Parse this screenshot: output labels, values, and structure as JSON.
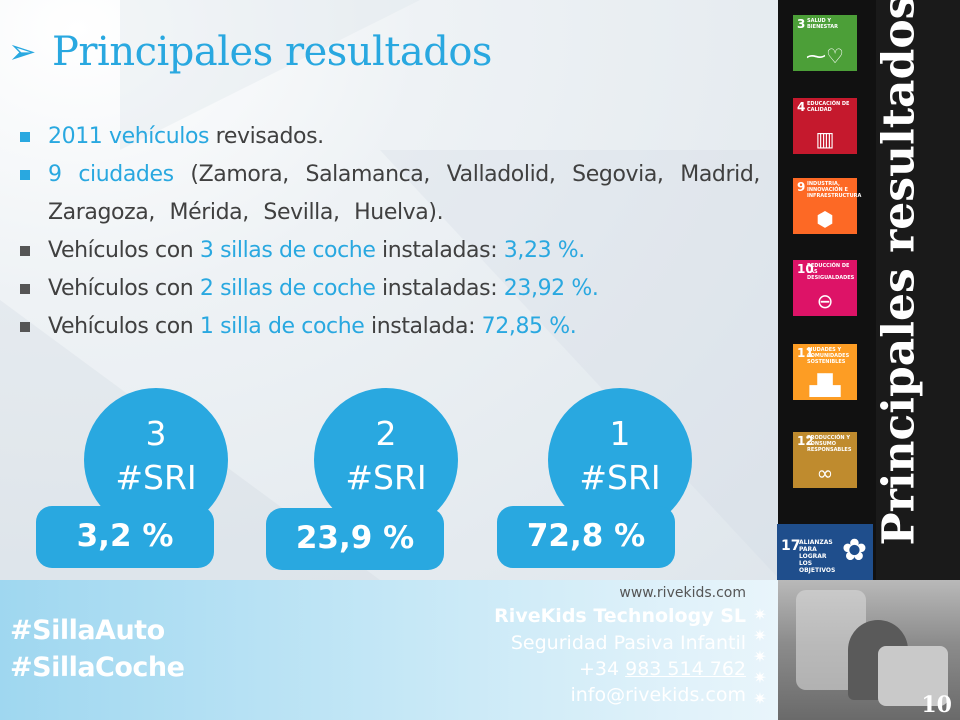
{
  "title": {
    "arrow": "➢",
    "text": "Principales resultados"
  },
  "bullets": {
    "b1": {
      "hl": "2011 vehículos",
      "rest": " revisados."
    },
    "b2": {
      "hl": "9 ciudades",
      "rest": " (Zamora, Salamanca, Valladolid, Segovia, Madrid, Zaragoza, Mérida, Sevilla, Huelva)."
    },
    "b3": {
      "pre": "Vehículos con ",
      "hl": "3 sillas de coche",
      "mid": " instaladas: ",
      "val": "3,23 %."
    },
    "b4": {
      "pre": "Vehículos con ",
      "hl": "2 sillas de coche",
      "mid": " instaladas: ",
      "val": "23,92 %."
    },
    "b5": {
      "pre": "Vehículos con ",
      "hl": "1 silla de coche",
      "mid": " instalada: ",
      "val": "72,85 %."
    }
  },
  "badges": [
    {
      "number": "3",
      "label": "#SRI",
      "percent": "3,2 %"
    },
    {
      "number": "2",
      "label": "#SRI",
      "percent": "23,9 %"
    },
    {
      "number": "1",
      "label": "#SRI",
      "percent": "72,8 %"
    }
  ],
  "sdg": [
    {
      "num": "3",
      "label": "SALUD Y BIENESTAR",
      "color": "#4c9f38",
      "icon": "heartbeat-icon"
    },
    {
      "num": "4",
      "label": "EDUCACIÓN DE CALIDAD",
      "color": "#c5192d",
      "icon": "book-icon"
    },
    {
      "num": "9",
      "label": "INDUSTRIA, INNOVACIÓN E INFRAESTRUCTURA",
      "color": "#fd6925",
      "icon": "cubes-icon"
    },
    {
      "num": "10",
      "label": "REDUCCIÓN DE LAS DESIGUALDADES",
      "color": "#dd1367",
      "icon": "equality-icon"
    },
    {
      "num": "11",
      "label": "CIUDADES Y COMUNIDADES SOSTENIBLES",
      "color": "#fd9d24",
      "icon": "city-icon"
    },
    {
      "num": "12",
      "label": "PRODUCCIÓN Y CONSUMO RESPONSABLES",
      "color": "#bf8b2e",
      "icon": "infinity-icon"
    },
    {
      "num": "17",
      "label": "ALIANZAS PARA LOGRAR LOS OBJETIVOS",
      "color": "#19486a",
      "icon": "flower-icon"
    }
  ],
  "vertical_title": "Principales resultados",
  "footer": {
    "hashtag1": "#SillaAuto",
    "hashtag2": "#SillaCoche",
    "website": "www.rivekids.com",
    "company": "RiveKids Technology SL",
    "tagline": "Seguridad Pasiva Infantil",
    "phone_prefix": "+34 ",
    "phone_number": "983 514 762",
    "email": "info@rivekids.com"
  },
  "page_number": "10",
  "colors": {
    "accent": "#29a8e0",
    "text": "#404040"
  }
}
